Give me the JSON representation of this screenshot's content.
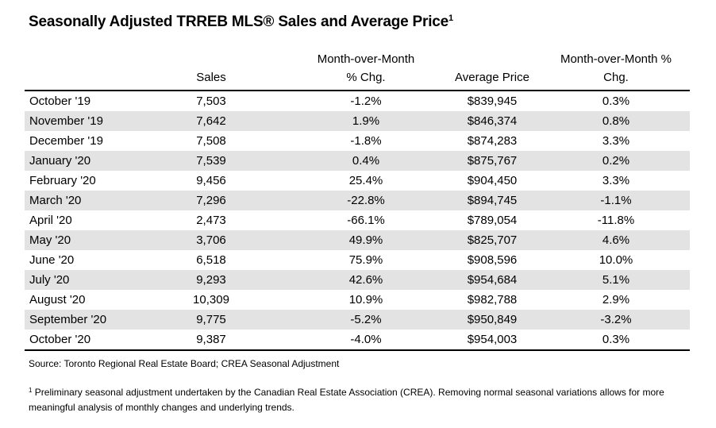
{
  "title": {
    "text": "Seasonally Adjusted TRREB MLS® Sales and Average Price",
    "superscript": "1"
  },
  "table": {
    "headers": {
      "sales": "Sales",
      "mom_sales_line1": "Month-over-Month",
      "mom_sales_line2": "% Chg.",
      "avg_price": "Average Price",
      "mom_price_line1": "Month-over-Month %",
      "mom_price_line2": "Chg."
    },
    "rows": [
      {
        "month": "October '19",
        "sales": "7,503",
        "mom_sales": "-1.2%",
        "avg_price": "$839,945",
        "mom_price": "0.3%"
      },
      {
        "month": "November '19",
        "sales": "7,642",
        "mom_sales": "1.9%",
        "avg_price": "$846,374",
        "mom_price": "0.8%"
      },
      {
        "month": "December '19",
        "sales": "7,508",
        "mom_sales": "-1.8%",
        "avg_price": "$874,283",
        "mom_price": "3.3%"
      },
      {
        "month": "January '20",
        "sales": "7,539",
        "mom_sales": "0.4%",
        "avg_price": "$875,767",
        "mom_price": "0.2%"
      },
      {
        "month": "February '20",
        "sales": "9,456",
        "mom_sales": "25.4%",
        "avg_price": "$904,450",
        "mom_price": "3.3%"
      },
      {
        "month": "March '20",
        "sales": "7,296",
        "mom_sales": "-22.8%",
        "avg_price": "$894,745",
        "mom_price": "-1.1%"
      },
      {
        "month": "April '20",
        "sales": "2,473",
        "mom_sales": "-66.1%",
        "avg_price": "$789,054",
        "mom_price": "-11.8%"
      },
      {
        "month": "May '20",
        "sales": "3,706",
        "mom_sales": "49.9%",
        "avg_price": "$825,707",
        "mom_price": "4.6%"
      },
      {
        "month": "June '20",
        "sales": "6,518",
        "mom_sales": "75.9%",
        "avg_price": "$908,596",
        "mom_price": "10.0%"
      },
      {
        "month": "July '20",
        "sales": "9,293",
        "mom_sales": "42.6%",
        "avg_price": "$954,684",
        "mom_price": "5.1%"
      },
      {
        "month": "August '20",
        "sales": "10,309",
        "mom_sales": "10.9%",
        "avg_price": "$982,788",
        "mom_price": "2.9%"
      },
      {
        "month": "September '20",
        "sales": "9,775",
        "mom_sales": "-5.2%",
        "avg_price": "$950,849",
        "mom_price": "-3.2%"
      },
      {
        "month": "October '20",
        "sales": "9,387",
        "mom_sales": "-4.0%",
        "avg_price": "$954,003",
        "mom_price": "0.3%"
      }
    ],
    "shade_color": "#e3e3e3"
  },
  "source": "Source: Toronto Regional Real Estate Board; CREA Seasonal Adjustment",
  "footnote": {
    "marker": "1",
    "text": " Preliminary seasonal adjustment undertaken by the Canadian Real Estate Association (CREA).  Removing normal seasonal variations allows for more meaningful analysis of monthly changes and underlying trends."
  }
}
